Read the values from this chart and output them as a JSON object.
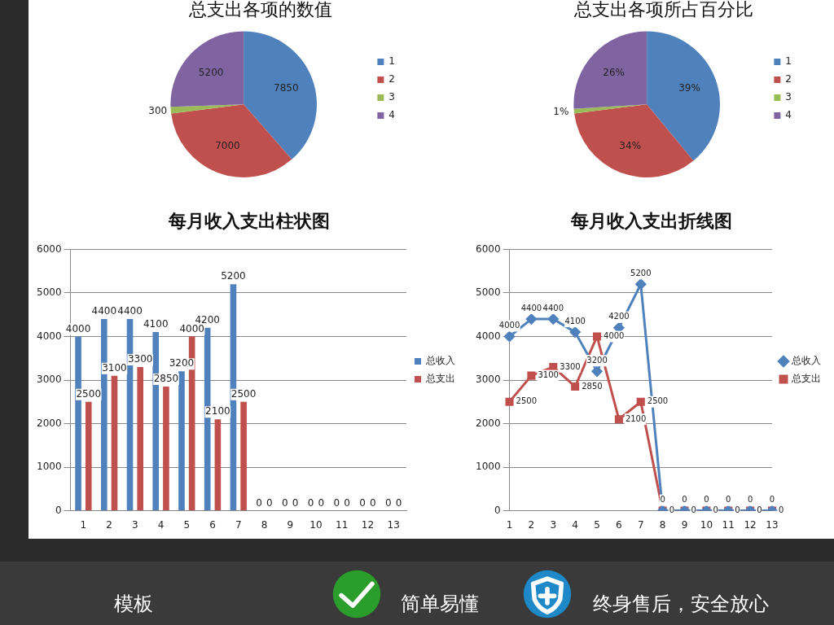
{
  "chart_data": [
    {
      "type": "pie",
      "title": "总支出各项的数值",
      "categories": [
        "1",
        "2",
        "3",
        "4"
      ],
      "values": [
        7850,
        7000,
        300,
        5200
      ],
      "colors": [
        "#4f81bd",
        "#c0504d",
        "#9bbb59",
        "#8064a2"
      ],
      "data_labels": true,
      "legend": "right"
    },
    {
      "type": "pie",
      "title": "总支出各项所占百分比",
      "categories": [
        "1",
        "2",
        "3",
        "4"
      ],
      "values": [
        39,
        34,
        1,
        26
      ],
      "value_labels": [
        "39%",
        "34%",
        "1%",
        "26%"
      ],
      "colors": [
        "#4f81bd",
        "#c0504d",
        "#9bbb59",
        "#8064a2"
      ],
      "legend": "right"
    },
    {
      "type": "bar",
      "title": "每月收入支出柱状图",
      "categories": [
        "1",
        "2",
        "3",
        "4",
        "5",
        "6",
        "7",
        "8",
        "9",
        "10",
        "11",
        "12",
        "13"
      ],
      "series": [
        {
          "name": "总收入",
          "color": "#4f81bd",
          "values": [
            4000,
            4400,
            4400,
            4100,
            3200,
            4200,
            5200,
            0,
            0,
            0,
            0,
            0,
            0
          ]
        },
        {
          "name": "总支出",
          "color": "#c0504d",
          "values": [
            2500,
            3100,
            3300,
            2850,
            4000,
            2100,
            2500,
            0,
            0,
            0,
            0,
            0,
            0
          ]
        }
      ],
      "ylim": [
        0,
        6000
      ],
      "yticks": [
        0,
        1000,
        2000,
        3000,
        4000,
        5000,
        6000
      ],
      "grid": "y",
      "data_labels": true,
      "legend": "right"
    },
    {
      "type": "line",
      "title": "每月收入支出折线图",
      "categories": [
        "1",
        "2",
        "3",
        "4",
        "5",
        "6",
        "7",
        "8",
        "9",
        "10",
        "11",
        "12",
        "13"
      ],
      "series": [
        {
          "name": "总收入",
          "color": "#4f81bd",
          "marker": "diamond",
          "values": [
            4000,
            4400,
            4400,
            4100,
            3200,
            4200,
            5200,
            0,
            0,
            0,
            0,
            0,
            0
          ]
        },
        {
          "name": "总支出",
          "color": "#c0504d",
          "marker": "square",
          "values": [
            2500,
            3100,
            3300,
            2850,
            4000,
            2100,
            2500,
            0,
            0,
            0,
            0,
            0,
            0
          ]
        }
      ],
      "ylim": [
        0,
        6000
      ],
      "yticks": [
        0,
        1000,
        2000,
        3000,
        4000,
        5000,
        6000
      ],
      "grid": "y",
      "data_labels": true,
      "legend": "right"
    },
    {
      "type": "other",
      "annotations": [
        "模板",
        "简单易懂",
        "终身售后，安全放心"
      ]
    }
  ]
}
